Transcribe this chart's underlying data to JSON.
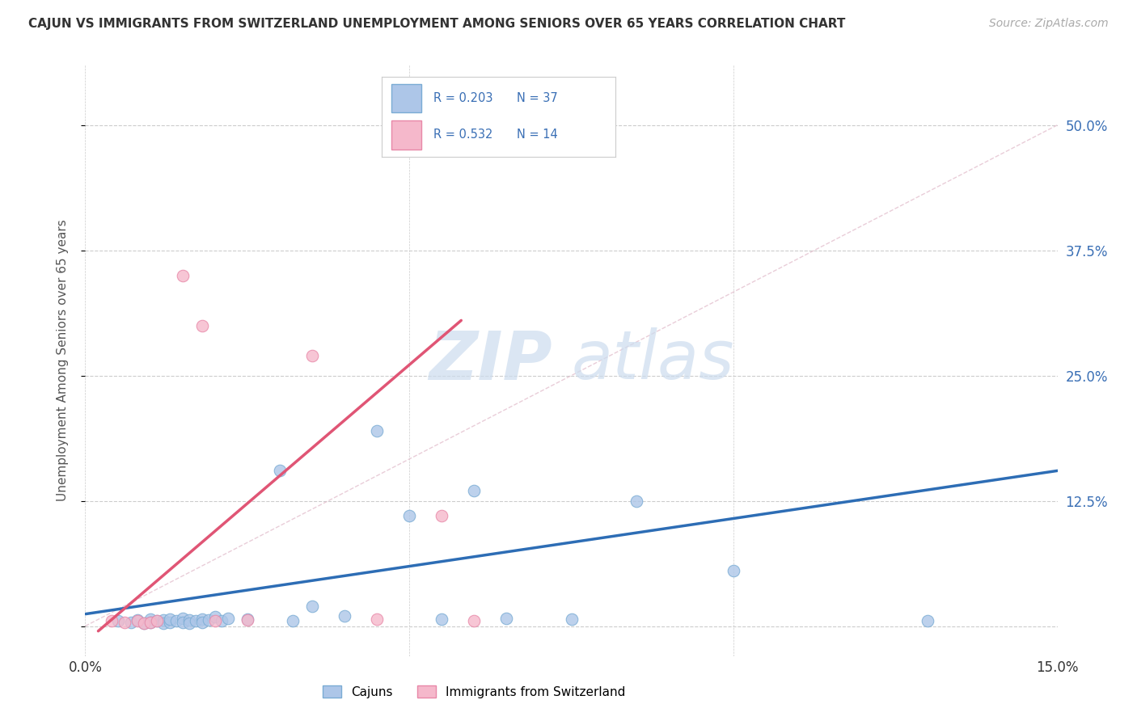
{
  "title": "CAJUN VS IMMIGRANTS FROM SWITZERLAND UNEMPLOYMENT AMONG SENIORS OVER 65 YEARS CORRELATION CHART",
  "source": "Source: ZipAtlas.com",
  "ylabel": "Unemployment Among Seniors over 65 years",
  "xmin": 0.0,
  "xmax": 0.15,
  "ymin": -0.03,
  "ymax": 0.56,
  "yticks": [
    0.0,
    0.125,
    0.25,
    0.375,
    0.5
  ],
  "ytick_labels": [
    "",
    "12.5%",
    "25.0%",
    "37.5%",
    "50.0%"
  ],
  "legend1_R": "R = 0.203",
  "legend1_N": "N = 37",
  "legend2_R": "R = 0.532",
  "legend2_N": "N = 14",
  "cajun_color": "#adc6e8",
  "cajun_edge": "#7aacd4",
  "swiss_color": "#f5b8cb",
  "swiss_edge": "#e888a8",
  "cajun_line_color": "#2d6db5",
  "swiss_line_color": "#e05575",
  "legend_text_color": "#3a6fb5",
  "watermark_color": "#ccdcee",
  "diag_color": "#e0b8c8",
  "grid_color": "#cccccc",
  "cajun_dots": [
    [
      0.005,
      0.005
    ],
    [
      0.007,
      0.004
    ],
    [
      0.008,
      0.006
    ],
    [
      0.009,
      0.003
    ],
    [
      0.01,
      0.007
    ],
    [
      0.01,
      0.004
    ],
    [
      0.011,
      0.005
    ],
    [
      0.012,
      0.006
    ],
    [
      0.012,
      0.003
    ],
    [
      0.013,
      0.004
    ],
    [
      0.013,
      0.007
    ],
    [
      0.014,
      0.005
    ],
    [
      0.015,
      0.008
    ],
    [
      0.015,
      0.004
    ],
    [
      0.016,
      0.006
    ],
    [
      0.016,
      0.003
    ],
    [
      0.017,
      0.005
    ],
    [
      0.018,
      0.007
    ],
    [
      0.018,
      0.004
    ],
    [
      0.019,
      0.006
    ],
    [
      0.02,
      0.009
    ],
    [
      0.021,
      0.005
    ],
    [
      0.022,
      0.008
    ],
    [
      0.025,
      0.007
    ],
    [
      0.03,
      0.155
    ],
    [
      0.032,
      0.005
    ],
    [
      0.035,
      0.02
    ],
    [
      0.04,
      0.01
    ],
    [
      0.045,
      0.195
    ],
    [
      0.05,
      0.11
    ],
    [
      0.055,
      0.007
    ],
    [
      0.06,
      0.135
    ],
    [
      0.065,
      0.008
    ],
    [
      0.075,
      0.007
    ],
    [
      0.085,
      0.125
    ],
    [
      0.1,
      0.055
    ],
    [
      0.13,
      0.005
    ]
  ],
  "swiss_dots": [
    [
      0.004,
      0.005
    ],
    [
      0.006,
      0.004
    ],
    [
      0.008,
      0.005
    ],
    [
      0.009,
      0.003
    ],
    [
      0.01,
      0.004
    ],
    [
      0.011,
      0.005
    ],
    [
      0.015,
      0.35
    ],
    [
      0.018,
      0.3
    ],
    [
      0.02,
      0.005
    ],
    [
      0.025,
      0.006
    ],
    [
      0.035,
      0.27
    ],
    [
      0.045,
      0.007
    ],
    [
      0.055,
      0.11
    ],
    [
      0.06,
      0.005
    ]
  ],
  "cajun_trend_x": [
    0.0,
    0.15
  ],
  "cajun_trend_y": [
    0.012,
    0.155
  ],
  "swiss_trend_x": [
    0.002,
    0.058
  ],
  "swiss_trend_y": [
    -0.005,
    0.305
  ]
}
